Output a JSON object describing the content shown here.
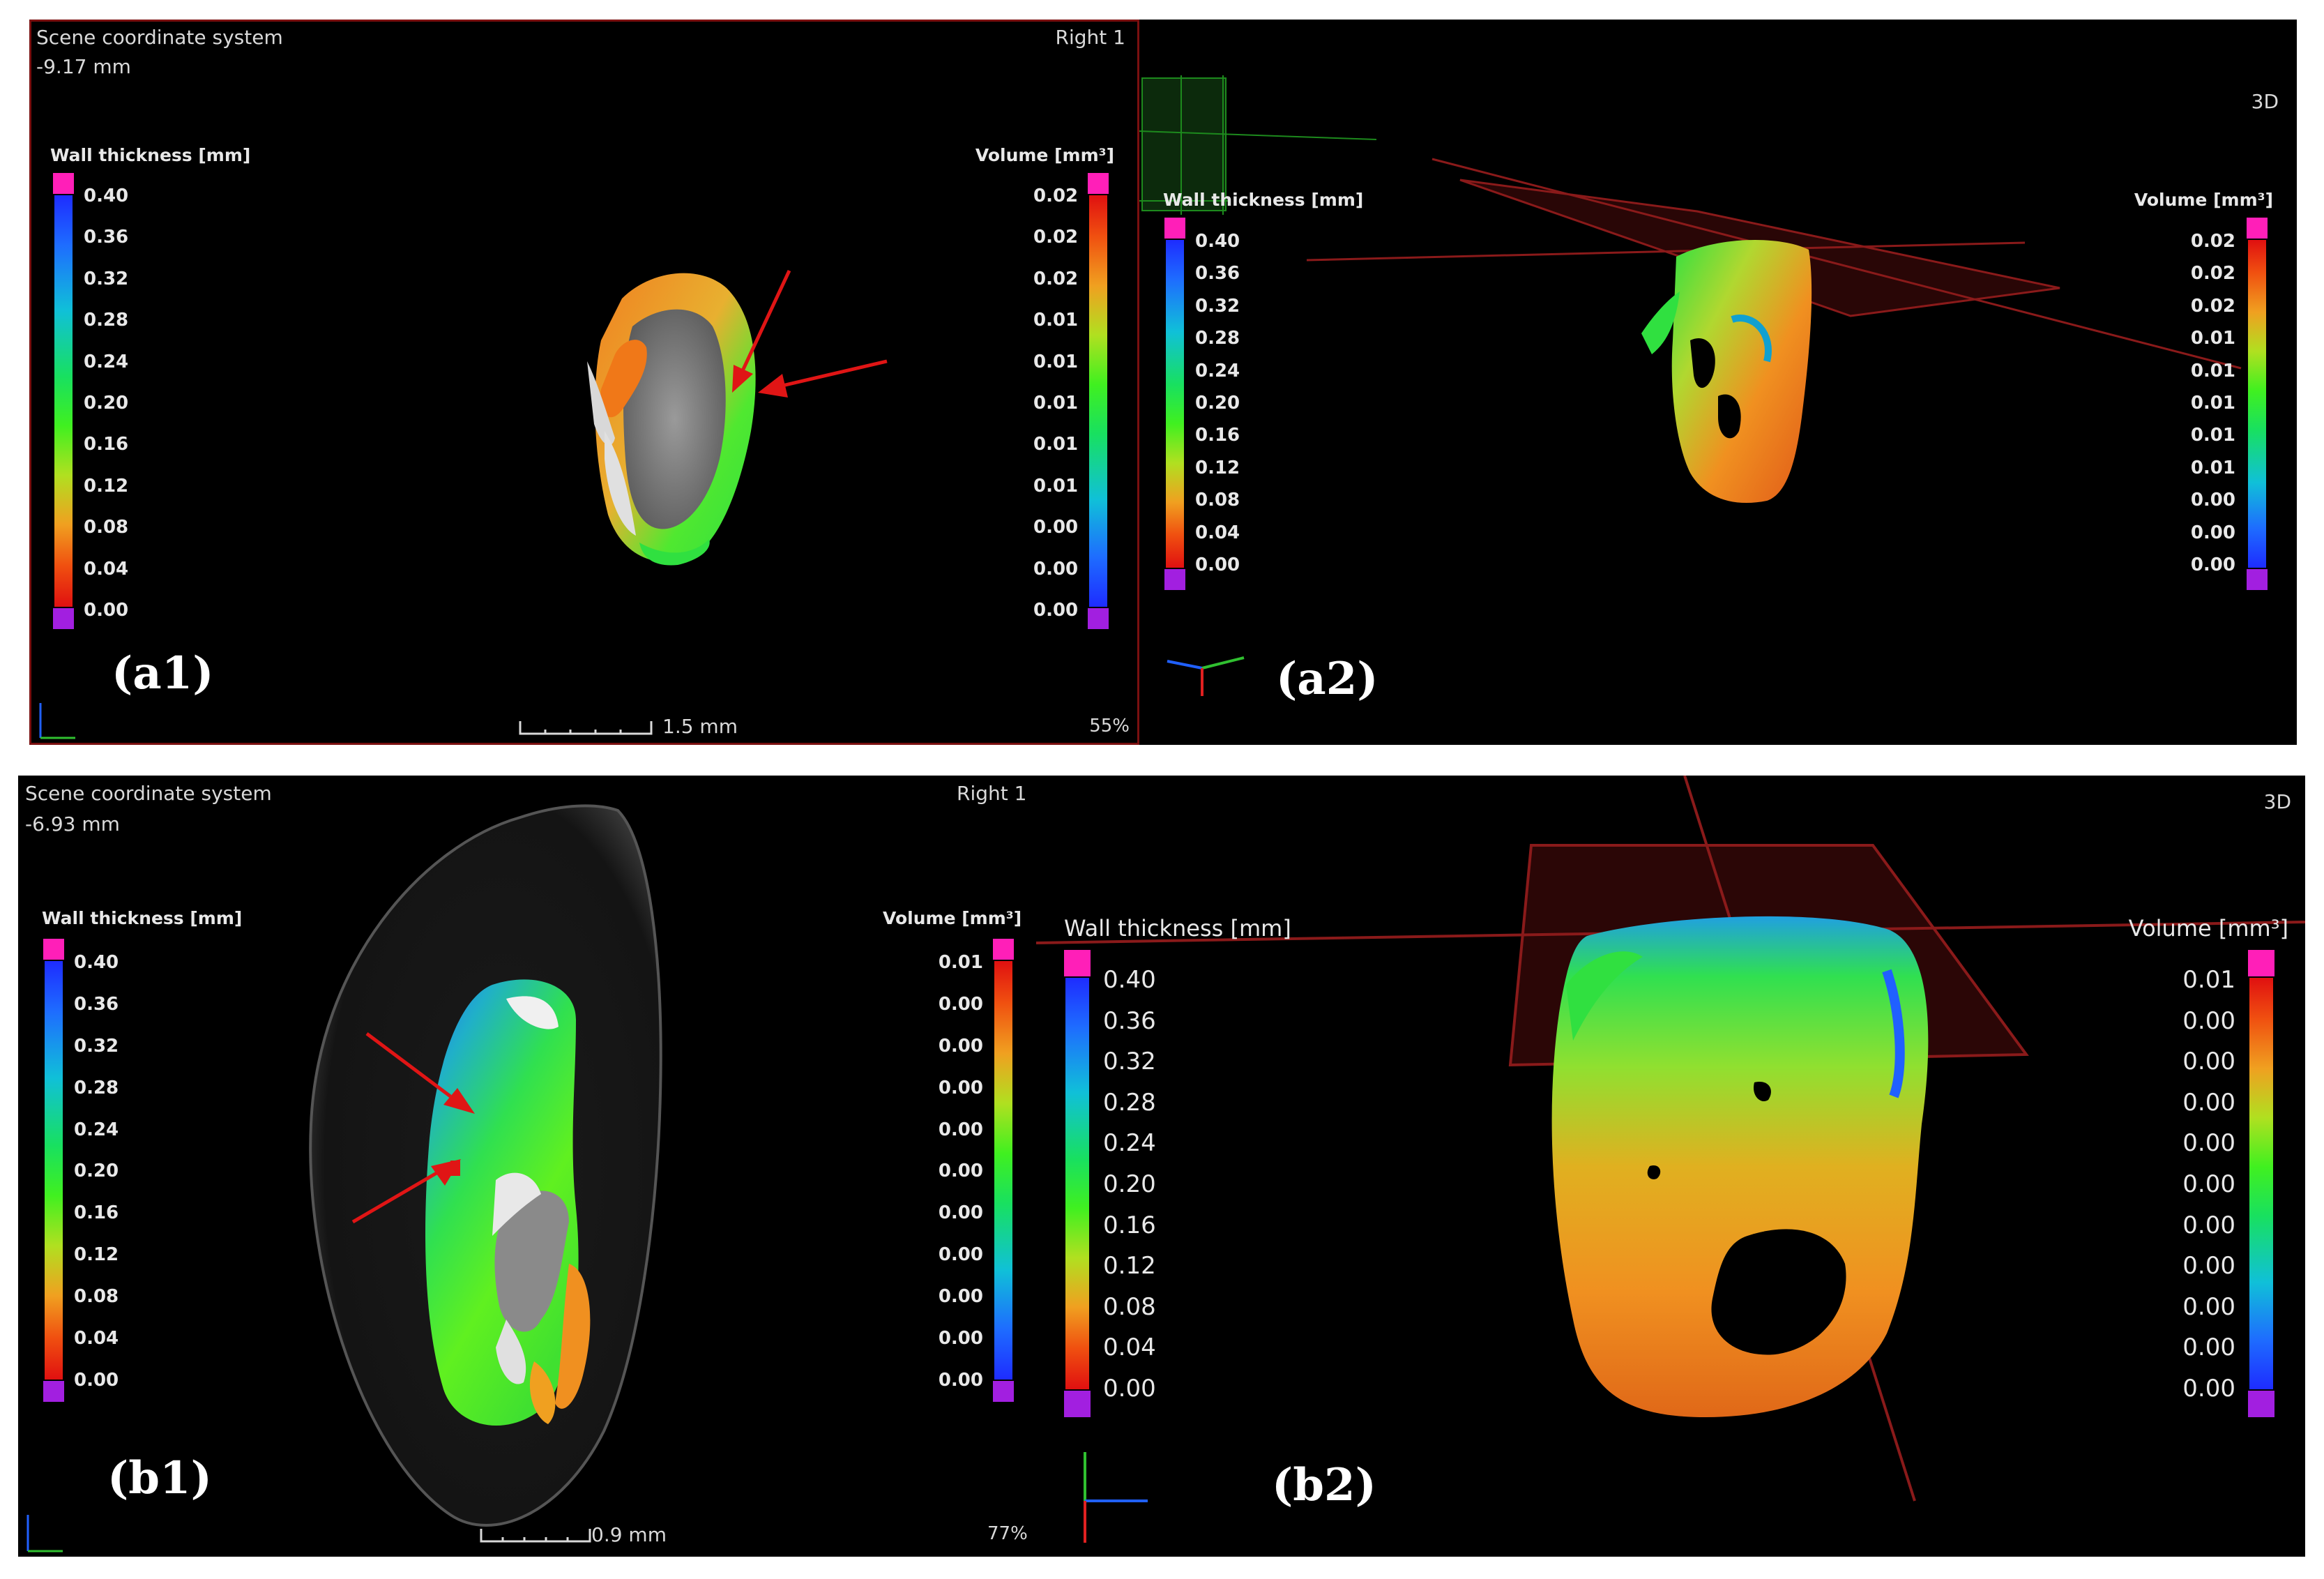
{
  "panels": {
    "a1": {
      "header_title": "Scene coordinate system",
      "header_value": "-9.17 mm",
      "view_label": "Right 1",
      "label": "(a1)",
      "scale_text": "1.5 mm",
      "zoom": "55%",
      "wall_thickness_title": "Wall thickness [mm]",
      "volume_title": "Volume [mm³]"
    },
    "a2": {
      "view_label": "3D",
      "label": "(a2)",
      "wall_thickness_title": "Wall thickness [mm]",
      "volume_title": "Volume [mm³]"
    },
    "b1": {
      "header_title": "Scene coordinate system",
      "header_value": "-6.93 mm",
      "view_label": "Right 1",
      "label": "(b1)",
      "scale_text": "0.9 mm",
      "zoom": "77%",
      "wall_thickness_title": "Wall thickness [mm]",
      "volume_title": "Volume [mm³]"
    },
    "b2": {
      "view_label": "3D",
      "label": "(b2)",
      "wall_thickness_title": "Wall thickness [mm]",
      "volume_title": "Volume [mm³]"
    }
  },
  "wall_thickness_ticks": [
    "0.40",
    "0.36",
    "0.32",
    "0.28",
    "0.24",
    "0.20",
    "0.16",
    "0.12",
    "0.08",
    "0.04",
    "0.00"
  ],
  "volume_ticks_a": [
    "0.02",
    "0.02",
    "0.02",
    "0.01",
    "0.01",
    "0.01",
    "0.01",
    "0.01",
    "0.00",
    "0.00",
    "0.00"
  ],
  "volume_ticks_b": [
    "0.01",
    "0.00",
    "0.00",
    "0.00",
    "0.00",
    "0.00",
    "0.00",
    "0.00",
    "0.00",
    "0.00",
    "0.00"
  ],
  "colors": {
    "background": "#000000",
    "arrow": "#e01515",
    "plane": "#8a1a1a",
    "cap_top": "#ff1fb8",
    "cap_bottom": "#a21fe0"
  },
  "icons": [
    "axis-triad-icon",
    "red-arrow-icon"
  ]
}
